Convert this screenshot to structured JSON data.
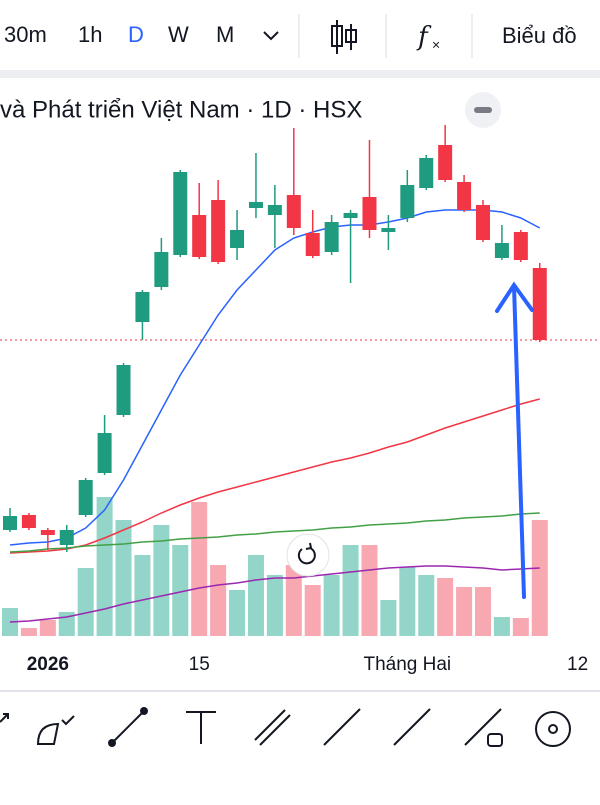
{
  "toolbar": {
    "intervals": [
      "30m",
      "1h",
      "D",
      "W",
      "M"
    ],
    "chart_button": "Biểu đồ"
  },
  "chart_data": {
    "type": "candlestick",
    "title": "và Phát triển Việt Nam · 1D · HSX",
    "categories": [
      null,
      null,
      "2026",
      null,
      null,
      null,
      null,
      null,
      null,
      null,
      "15",
      null,
      null,
      null,
      null,
      null,
      null,
      null,
      null,
      null,
      null,
      "Tháng Hai",
      null,
      null,
      null,
      null,
      null,
      null,
      null,
      null,
      "12"
    ],
    "open": [
      110,
      125,
      110,
      95,
      125,
      167,
      225,
      318,
      353,
      385,
      425,
      440,
      392,
      432,
      425,
      445,
      407,
      388,
      422,
      443,
      408,
      422,
      452,
      495,
      458,
      435,
      382,
      408,
      372,
      null,
      null
    ],
    "high": [
      132,
      127,
      112,
      115,
      162,
      225,
      277,
      350,
      402,
      470,
      457,
      460,
      430,
      487,
      455,
      512,
      430,
      425,
      430,
      500,
      425,
      470,
      485,
      515,
      465,
      440,
      415,
      410,
      377,
      null,
      null
    ],
    "low": [
      108,
      110,
      90,
      88,
      123,
      165,
      223,
      300,
      350,
      383,
      381,
      376,
      380,
      422,
      392,
      405,
      382,
      385,
      357,
      402,
      390,
      418,
      450,
      458,
      428,
      398,
      380,
      378,
      298,
      null,
      null
    ],
    "close": [
      124,
      112,
      105,
      110,
      160,
      207,
      275,
      348,
      388,
      468,
      383,
      378,
      410,
      438,
      435,
      412,
      384,
      418,
      427,
      410,
      412,
      455,
      482,
      460,
      430,
      400,
      397,
      380,
      300,
      null,
      null
    ],
    "volume": [
      28,
      8,
      16,
      24,
      68,
      139,
      116,
      81,
      111,
      91,
      134,
      71,
      46,
      81,
      61,
      71,
      51,
      61,
      91,
      91,
      36,
      69,
      61,
      58,
      49,
      49,
      19,
      18,
      116,
      null,
      null
    ],
    "ylim": [
      0,
      560
    ],
    "vlim": [
      0,
      150
    ],
    "up_color": "#1f9b80",
    "down_color": "#f23645",
    "up_volume_color": "#93d5c8",
    "down_volume_color": "#f7a8b0",
    "moving_averages": [
      {
        "color": "#2962ff",
        "values": [
          95,
          97,
          98,
          102,
          112,
          130,
          160,
          195,
          230,
          265,
          295,
          325,
          350,
          370,
          390,
          402,
          408,
          413,
          415,
          415,
          418,
          422,
          428,
          430,
          430,
          430,
          428,
          422,
          412,
          null,
          null
        ]
      },
      {
        "color": "#f23645",
        "values": [
          87,
          88,
          89,
          91,
          95,
          102,
          110,
          118,
          127,
          135,
          142,
          148,
          153,
          158,
          163,
          168,
          173,
          178,
          182,
          187,
          193,
          198,
          205,
          212,
          218,
          224,
          230,
          236,
          241,
          null,
          null
        ]
      },
      {
        "color": "#43a047",
        "values": [
          88,
          89,
          91,
          92,
          94,
          95,
          96,
          98,
          99,
          101,
          102,
          103,
          105,
          106,
          108,
          109,
          110,
          112,
          113,
          115,
          116,
          117,
          119,
          120,
          122,
          123,
          124,
          126,
          127,
          null,
          null
        ]
      },
      {
        "color": "#9c27b0",
        "values": [
          18,
          19,
          21,
          23,
          27,
          31,
          36,
          40,
          44,
          48,
          52,
          55,
          57,
          60,
          62,
          62,
          64,
          66,
          68,
          70,
          72,
          73,
          74,
          74,
          73,
          72,
          70,
          71,
          72,
          null,
          null
        ]
      }
    ]
  }
}
